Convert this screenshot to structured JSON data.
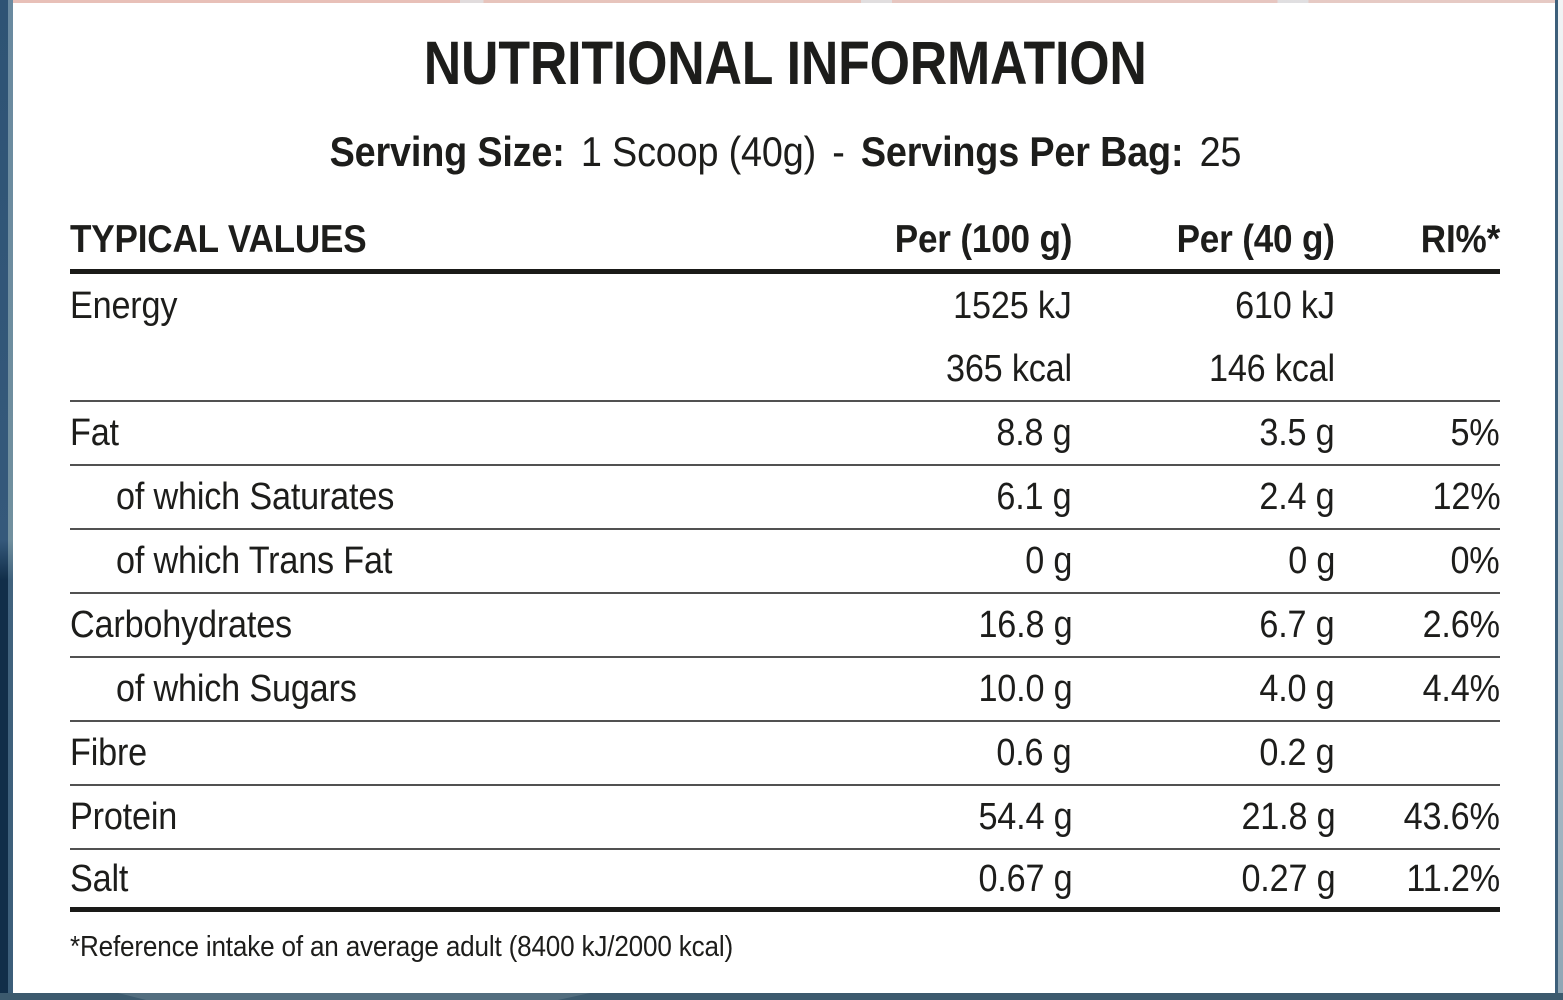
{
  "title": "NUTRITIONAL INFORMATION",
  "serving": {
    "size_label": "Serving Size:",
    "size_value": "1 Scoop (40g)",
    "dash": "-",
    "bag_label": "Servings Per Bag:",
    "bag_value": "25"
  },
  "table": {
    "headers": {
      "label": "TYPICAL VALUES",
      "per100": "Per (100 g)",
      "per40": "Per (40 g)",
      "ri": "RI%*"
    },
    "rows": [
      {
        "label": "Energy",
        "per100": "1525 kJ",
        "per40": "610 kJ",
        "ri": ""
      },
      {
        "label": "",
        "per100": "365 kcal",
        "per40": "146 kcal",
        "ri": ""
      },
      {
        "label": "Fat",
        "per100": "8.8 g",
        "per40": "3.5 g",
        "ri": "5%"
      },
      {
        "label": "of which Saturates",
        "per100": "6.1 g",
        "per40": "2.4 g",
        "ri": "12%"
      },
      {
        "label": "of which Trans Fat",
        "per100": "0 g",
        "per40": "0 g",
        "ri": "0%"
      },
      {
        "label": "Carbohydrates",
        "per100": "16.8 g",
        "per40": "6.7 g",
        "ri": "2.6%"
      },
      {
        "label": "of which Sugars",
        "per100": "10.0 g",
        "per40": "4.0 g",
        "ri": "4.4%"
      },
      {
        "label": "Fibre",
        "per100": "0.6 g",
        "per40": "0.2 g",
        "ri": ""
      },
      {
        "label": "Protein",
        "per100": "54.4 g",
        "per40": "21.8 g",
        "ri": "43.6%"
      },
      {
        "label": "Salt",
        "per100": "0.67 g",
        "per40": "0.27 g",
        "ri": "11.2%"
      }
    ]
  },
  "footnote": "*Reference intake of an average adult (8400 kJ/2000 kcal)",
  "colors": {
    "text": "#1d1d1b",
    "rule_thick": "#1a1a18",
    "rule_thin": "#515151",
    "package_edge_top": "#2e5374",
    "package_edge_bottom": "#112e49",
    "bottom_strip": "#3c5a6e",
    "top_strip_accent": "#eea898"
  }
}
